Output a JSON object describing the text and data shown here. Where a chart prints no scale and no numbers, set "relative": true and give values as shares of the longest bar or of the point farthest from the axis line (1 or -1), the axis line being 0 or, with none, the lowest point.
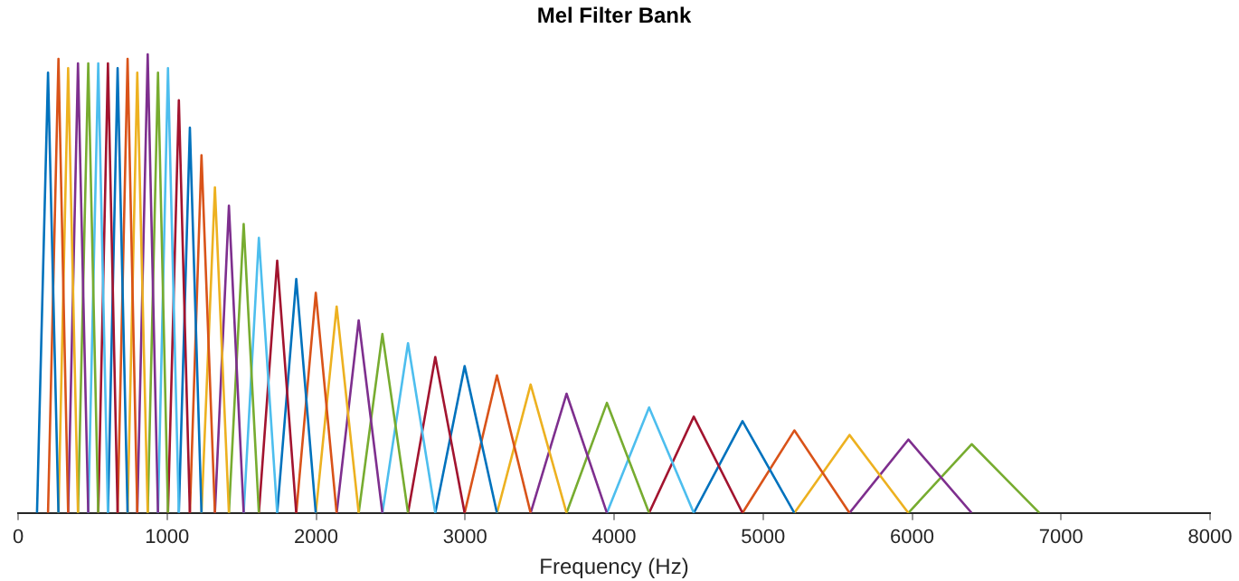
{
  "chart_data": {
    "type": "line",
    "title": "Mel Filter Bank",
    "xlabel": "Frequency (Hz)",
    "relative": true,
    "xlim": [
      0,
      8000
    ],
    "xticks": [
      0,
      1000,
      2000,
      3000,
      4000,
      5000,
      6000,
      7000,
      8000
    ],
    "grid": false,
    "legend": false,
    "marker": "none",
    "line_style": "solid",
    "series": [
      {
        "color": "#0072bd",
        "x": [
          127,
          201,
          271
        ],
        "values": [
          0,
          0.96,
          0
        ]
      },
      {
        "color": "#d95319",
        "x": [
          201,
          271,
          336
        ],
        "values": [
          0,
          0.99,
          0
        ]
      },
      {
        "color": "#edb120",
        "x": [
          271,
          336,
          402
        ],
        "values": [
          0,
          0.97,
          0
        ]
      },
      {
        "color": "#7e2f8e",
        "x": [
          336,
          402,
          471
        ],
        "values": [
          0,
          0.98,
          0
        ]
      },
      {
        "color": "#77ac30",
        "x": [
          402,
          471,
          538
        ],
        "values": [
          0,
          0.98,
          0
        ]
      },
      {
        "color": "#4dbeee",
        "x": [
          471,
          538,
          603
        ],
        "values": [
          0,
          0.98,
          0
        ]
      },
      {
        "color": "#a2142f",
        "x": [
          538,
          603,
          668
        ],
        "values": [
          0,
          0.98,
          0
        ]
      },
      {
        "color": "#0072bd",
        "x": [
          603,
          668,
          735
        ],
        "values": [
          0,
          0.97,
          0
        ]
      },
      {
        "color": "#d95319",
        "x": [
          668,
          735,
          800
        ],
        "values": [
          0,
          0.99,
          0
        ]
      },
      {
        "color": "#edb120",
        "x": [
          735,
          800,
          870
        ],
        "values": [
          0,
          0.96,
          0
        ]
      },
      {
        "color": "#7e2f8e",
        "x": [
          800,
          870,
          939
        ],
        "values": [
          0,
          1,
          0
        ]
      },
      {
        "color": "#77ac30",
        "x": [
          870,
          939,
          1006
        ],
        "values": [
          0,
          0.96,
          0
        ]
      },
      {
        "color": "#4dbeee",
        "x": [
          939,
          1006,
          1079
        ],
        "values": [
          0,
          0.97,
          0
        ]
      },
      {
        "color": "#a2142f",
        "x": [
          1006,
          1079,
          1153
        ],
        "values": [
          0,
          0.9,
          0
        ]
      },
      {
        "color": "#0072bd",
        "x": [
          1079,
          1153,
          1231
        ],
        "values": [
          0,
          0.84,
          0
        ]
      },
      {
        "color": "#d95319",
        "x": [
          1153,
          1231,
          1321
        ],
        "values": [
          0,
          0.78,
          0
        ]
      },
      {
        "color": "#edb120",
        "x": [
          1231,
          1321,
          1415
        ],
        "values": [
          0,
          0.71,
          0
        ]
      },
      {
        "color": "#7e2f8e",
        "x": [
          1321,
          1415,
          1514
        ],
        "values": [
          0,
          0.67,
          0
        ]
      },
      {
        "color": "#77ac30",
        "x": [
          1415,
          1514,
          1616
        ],
        "values": [
          0,
          0.63,
          0
        ]
      },
      {
        "color": "#4dbeee",
        "x": [
          1514,
          1616,
          1739
        ],
        "values": [
          0,
          0.6,
          0
        ]
      },
      {
        "color": "#a2142f",
        "x": [
          1616,
          1739,
          1867
        ],
        "values": [
          0,
          0.55,
          0
        ]
      },
      {
        "color": "#0072bd",
        "x": [
          1739,
          1867,
          1998
        ],
        "values": [
          0,
          0.51,
          0
        ]
      },
      {
        "color": "#d95319",
        "x": [
          1867,
          1998,
          2138
        ],
        "values": [
          0,
          0.48,
          0
        ]
      },
      {
        "color": "#edb120",
        "x": [
          1998,
          2138,
          2286
        ],
        "values": [
          0,
          0.45,
          0
        ]
      },
      {
        "color": "#7e2f8e",
        "x": [
          2138,
          2286,
          2445
        ],
        "values": [
          0,
          0.42,
          0
        ]
      },
      {
        "color": "#77ac30",
        "x": [
          2286,
          2445,
          2617
        ],
        "values": [
          0,
          0.39,
          0
        ]
      },
      {
        "color": "#4dbeee",
        "x": [
          2445,
          2617,
          2800
        ],
        "values": [
          0,
          0.37,
          0
        ]
      },
      {
        "color": "#a2142f",
        "x": [
          2617,
          2800,
          2997
        ],
        "values": [
          0,
          0.34,
          0
        ]
      },
      {
        "color": "#0072bd",
        "x": [
          2800,
          2997,
          3214
        ],
        "values": [
          0,
          0.32,
          0
        ]
      },
      {
        "color": "#d95319",
        "x": [
          2997,
          3214,
          3440
        ],
        "values": [
          0,
          0.3,
          0
        ]
      },
      {
        "color": "#edb120",
        "x": [
          3214,
          3440,
          3681
        ],
        "values": [
          0,
          0.28,
          0
        ]
      },
      {
        "color": "#7e2f8e",
        "x": [
          3440,
          3681,
          3952
        ],
        "values": [
          0,
          0.26,
          0
        ]
      },
      {
        "color": "#77ac30",
        "x": [
          3681,
          3952,
          4235
        ],
        "values": [
          0,
          0.24,
          0
        ]
      },
      {
        "color": "#4dbeee",
        "x": [
          3952,
          4235,
          4535
        ],
        "values": [
          0,
          0.23,
          0
        ]
      },
      {
        "color": "#a2142f",
        "x": [
          4235,
          4535,
          4862
        ],
        "values": [
          0,
          0.21,
          0
        ]
      },
      {
        "color": "#0072bd",
        "x": [
          4535,
          4862,
          5210
        ],
        "values": [
          0,
          0.2,
          0
        ]
      },
      {
        "color": "#d95319",
        "x": [
          4862,
          5210,
          5580
        ],
        "values": [
          0,
          0.18,
          0
        ]
      },
      {
        "color": "#edb120",
        "x": [
          5210,
          5580,
          5975
        ],
        "values": [
          0,
          0.17,
          0
        ]
      },
      {
        "color": "#7e2f8e",
        "x": [
          5580,
          5975,
          6400
        ],
        "values": [
          0,
          0.16,
          0
        ]
      },
      {
        "color": "#77ac30",
        "x": [
          5975,
          6400,
          6855
        ],
        "values": [
          0,
          0.15,
          0
        ]
      }
    ]
  }
}
